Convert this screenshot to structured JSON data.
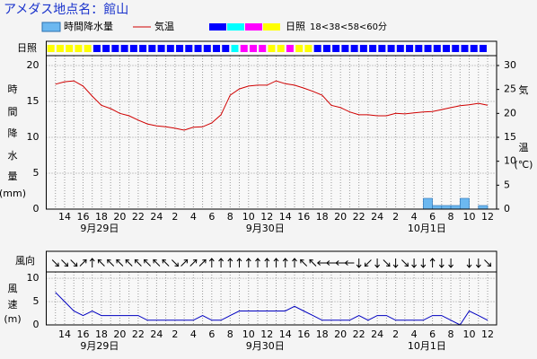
{
  "title": "アメダス地点名：館山",
  "chart_data": [
    {
      "type": "combo",
      "categories": [
        null,
        null,
        "14",
        null,
        "16",
        null,
        "18",
        null,
        "20",
        null,
        "22",
        null,
        "24",
        null,
        "2",
        null,
        "4",
        null,
        "6",
        null,
        "8",
        null,
        "10",
        null,
        "12",
        null,
        "14",
        null,
        "16",
        null,
        "18",
        null,
        "20",
        null,
        "22",
        null,
        "24",
        null,
        "2",
        null,
        "4",
        null,
        "6",
        null,
        "8",
        null,
        "10",
        null,
        "12"
      ],
      "date_labels": [
        "9月29日",
        "9月30日",
        "10月1日"
      ],
      "series": [
        {
          "name": "時間降水量",
          "type": "bar",
          "color": "#6cb8f0",
          "values": [
            null,
            0,
            0,
            0,
            0,
            0,
            0,
            0,
            0,
            0,
            0,
            0,
            0,
            0,
            0,
            0,
            0,
            0,
            0,
            0,
            0,
            0,
            0,
            0,
            0,
            0,
            0,
            0,
            0,
            0,
            0,
            0,
            0,
            0,
            0,
            0,
            0,
            0,
            0,
            0,
            0,
            0,
            1.5,
            0.5,
            0.5,
            0.5,
            1.5,
            0,
            0.5
          ]
        },
        {
          "name": "気温",
          "type": "line",
          "axis": "y2",
          "color": "#d00000",
          "values": [
            null,
            26.1,
            26.6,
            26.8,
            25.7,
            23.6,
            21.7,
            21.0,
            20.0,
            19.5,
            18.6,
            17.8,
            17.4,
            17.2,
            16.9,
            16.5,
            17.1,
            17.2,
            18.0,
            19.7,
            23.8,
            25.1,
            25.7,
            25.9,
            25.9,
            26.8,
            26.2,
            25.9,
            25.3,
            24.6,
            23.8,
            21.7,
            21.2,
            20.3,
            19.7,
            19.7,
            19.5,
            19.5,
            20.0,
            19.9,
            20.1,
            20.3,
            20.4,
            20.8,
            21.2,
            21.6,
            21.8,
            22.1,
            21.7
          ]
        }
      ],
      "sunshine": {
        "label": "日照",
        "scale_label": "18<38<58<60分",
        "colors": [
          "#0000ff",
          "#00ffff",
          "#ff00ff",
          "#ffff00"
        ],
        "levels": [
          null,
          3,
          3,
          3,
          3,
          3,
          0,
          0,
          0,
          0,
          0,
          0,
          0,
          0,
          0,
          0,
          0,
          0,
          0,
          0,
          0,
          1,
          2,
          2,
          2,
          3,
          3,
          2,
          3,
          3,
          0,
          0,
          0,
          0,
          0,
          0,
          0,
          0,
          0,
          0,
          0,
          0,
          0,
          0,
          0,
          0,
          0,
          0,
          0
        ]
      },
      "ylabel": [
        "時",
        "間",
        "降",
        "水",
        "量",
        "(mm)"
      ],
      "y2label": [
        "気",
        "温",
        "(℃)"
      ],
      "ylim": [
        0,
        21
      ],
      "yticks": [
        0,
        5,
        10,
        15,
        20
      ],
      "y2lim": [
        0,
        31.5
      ],
      "y2ticks": [
        0,
        5,
        10,
        15,
        20,
        25,
        30
      ],
      "grid": true
    },
    {
      "type": "line",
      "categories": [
        null,
        null,
        "14",
        null,
        "16",
        null,
        "18",
        null,
        "20",
        null,
        "22",
        null,
        "24",
        null,
        "2",
        null,
        "4",
        null,
        "6",
        null,
        "8",
        null,
        "10",
        null,
        "12",
        null,
        "14",
        null,
        "16",
        null,
        "18",
        null,
        "20",
        null,
        "22",
        null,
        "24",
        null,
        "2",
        null,
        "4",
        null,
        "6",
        null,
        "8",
        null,
        "10",
        null,
        "12"
      ],
      "date_labels": [
        "9月29日",
        "9月30日",
        "10月1日"
      ],
      "direction_label": "風向",
      "direction": [
        null,
        135,
        135,
        135,
        45,
        0,
        315,
        315,
        315,
        315,
        315,
        315,
        315,
        315,
        135,
        45,
        45,
        45,
        0,
        0,
        0,
        0,
        0,
        0,
        0,
        0,
        0,
        0,
        315,
        315,
        270,
        270,
        270,
        270,
        180,
        225,
        180,
        135,
        180,
        135,
        180,
        180,
        0,
        180,
        180,
        null,
        180,
        180,
        135
      ],
      "color": "#0000c0",
      "values": [
        null,
        7,
        5,
        3,
        2,
        3,
        2,
        2,
        2,
        2,
        2,
        1,
        1,
        1,
        1,
        1,
        1,
        2,
        1,
        1,
        2,
        3,
        3,
        3,
        3,
        3,
        3,
        4,
        3,
        2,
        1,
        1,
        1,
        1,
        2,
        1,
        2,
        2,
        1,
        1,
        1,
        1,
        2,
        2,
        1,
        0,
        3,
        2,
        1
      ],
      "ylabel": [
        "風",
        "速",
        "(m)"
      ],
      "ylim": [
        0,
        11
      ],
      "yticks": [
        0,
        5,
        10
      ],
      "grid": true
    }
  ]
}
